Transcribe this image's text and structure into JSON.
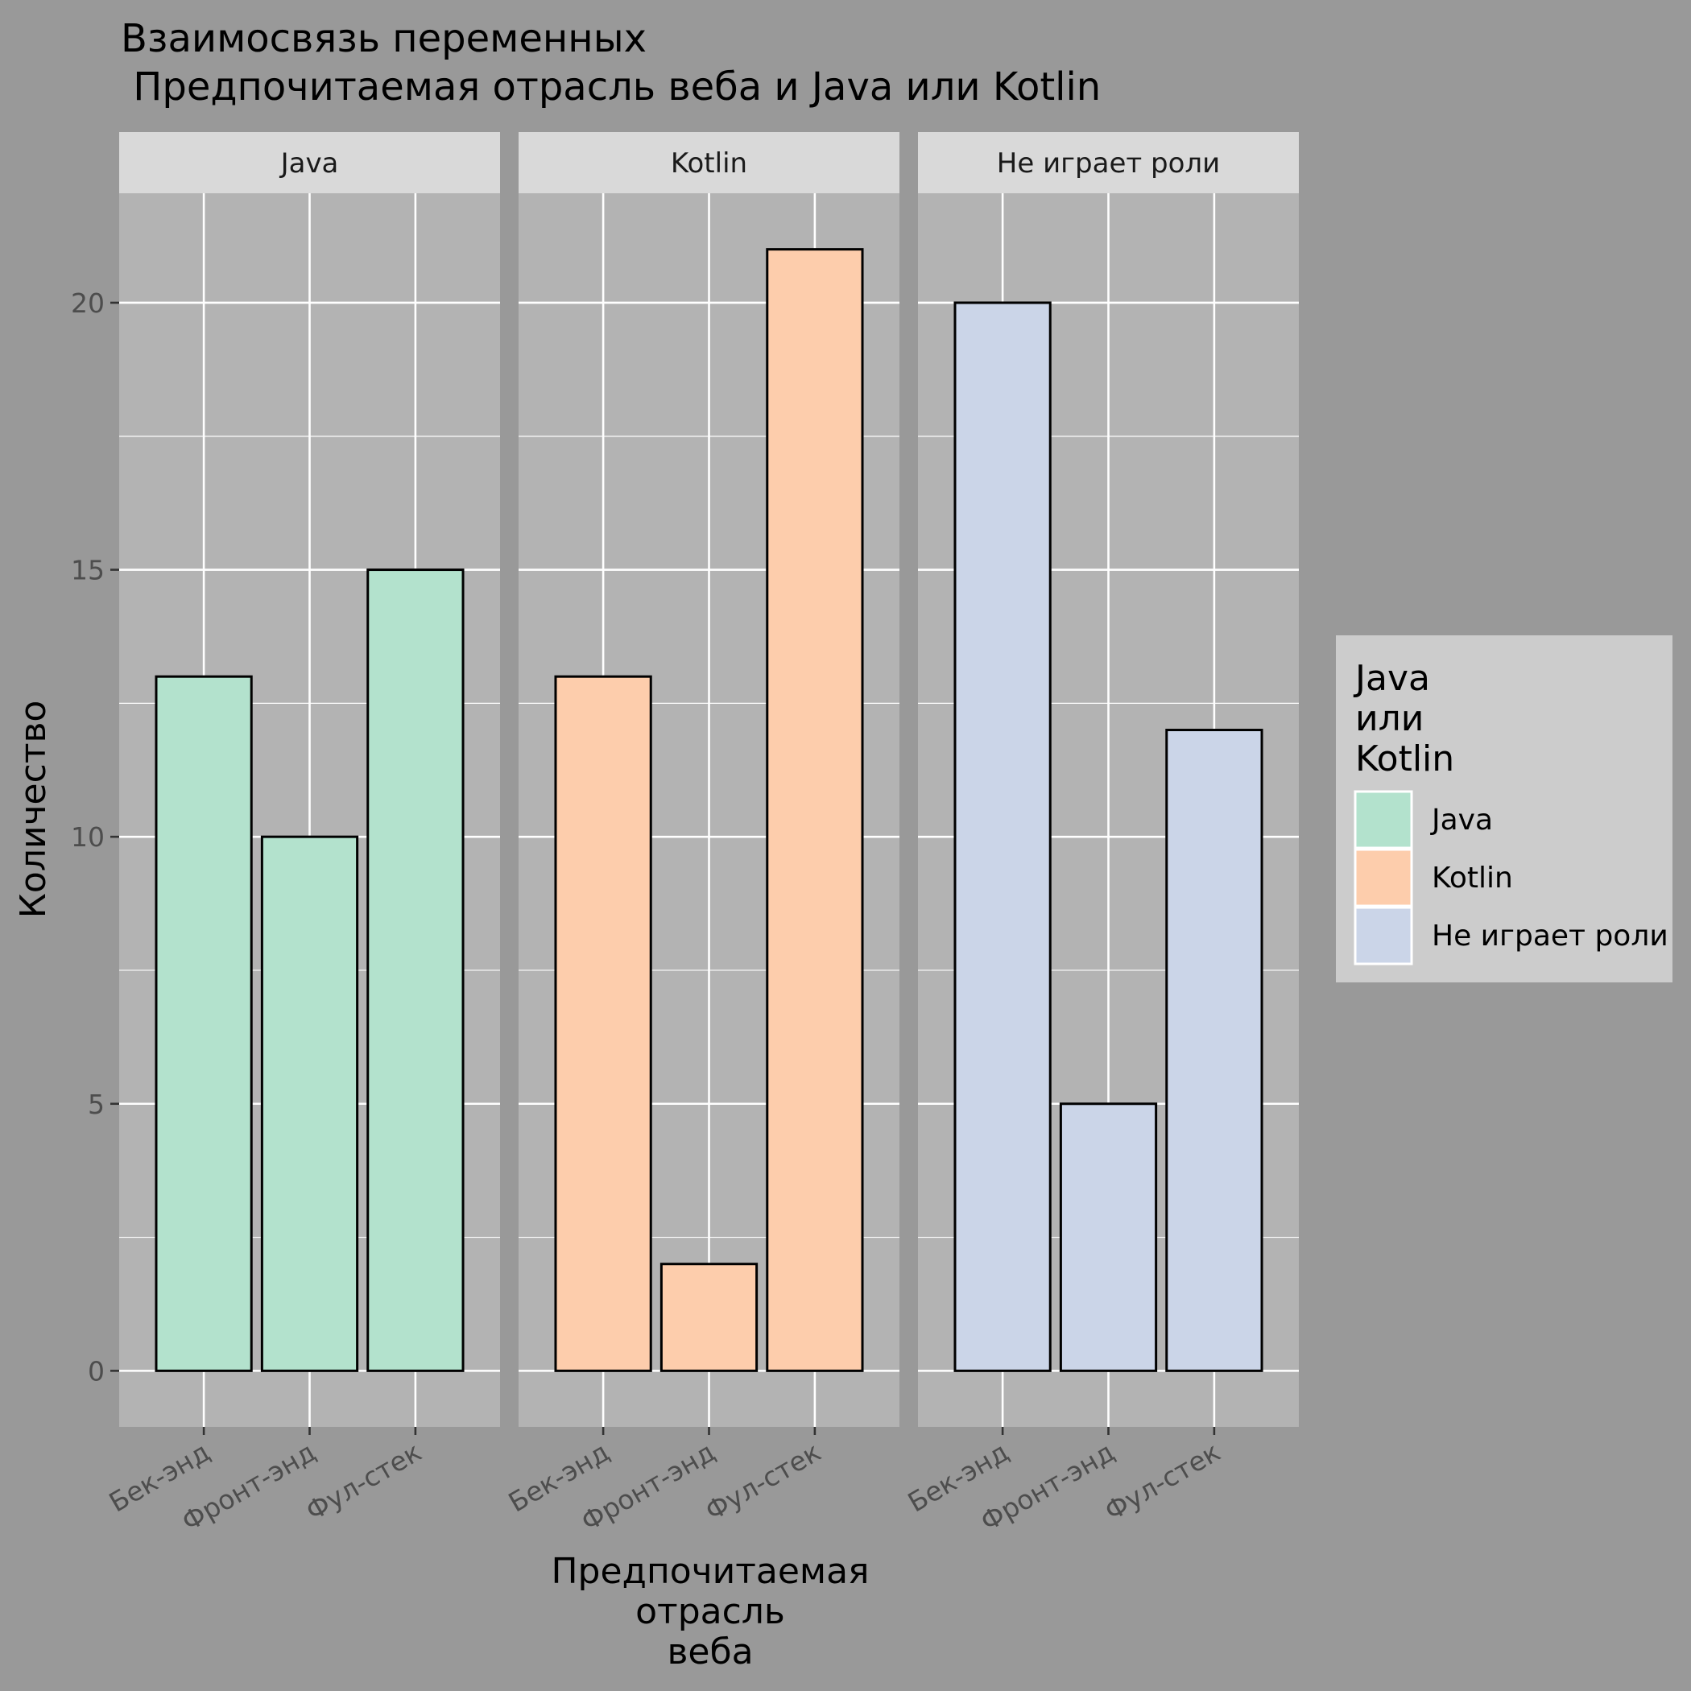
{
  "title": {
    "line1": "Взаимосвязь переменных",
    "line2": " Предпочитаемая отрасль веба и Java или Kotlin"
  },
  "axes": {
    "ylabel": "Количество",
    "xlabel_lines": [
      "Предпочитаемая",
      "отрасль",
      "веба"
    ]
  },
  "legend": {
    "title_lines": [
      "Java",
      "или",
      "Kotlin"
    ],
    "items": [
      {
        "label": "Java",
        "color": "#B3E2CD"
      },
      {
        "label": "Kotlin",
        "color": "#FDCDAC"
      },
      {
        "label": "Не играет роли",
        "color": "#CBD5E8"
      }
    ]
  },
  "chart_data": {
    "type": "bar",
    "facet_by": "Java или Kotlin",
    "facets": [
      "Java",
      "Kotlin",
      "Не играет роли"
    ],
    "categories": [
      "Бек-энд",
      "Фронт-энд",
      "Фул-стек"
    ],
    "series": [
      {
        "name": "Java",
        "values": [
          13,
          10,
          15
        ]
      },
      {
        "name": "Kotlin",
        "values": [
          13,
          2,
          21
        ]
      },
      {
        "name": "Не играет роли",
        "values": [
          20,
          5,
          12
        ]
      }
    ],
    "colors": [
      "#B3E2CD",
      "#FDCDAC",
      "#CBD5E8"
    ],
    "yticks": [
      0,
      5,
      10,
      15,
      20
    ],
    "ylim": [
      -1.05,
      22.05
    ],
    "grid": true,
    "legend_position": "right",
    "colors_theme": {
      "background": "#999999",
      "panel": "#B3B3B3",
      "strip": "#D9D9D9",
      "legend_box": "#CCCCCC",
      "grid": "#FFFFFF",
      "bar_outline": "#000000"
    }
  }
}
